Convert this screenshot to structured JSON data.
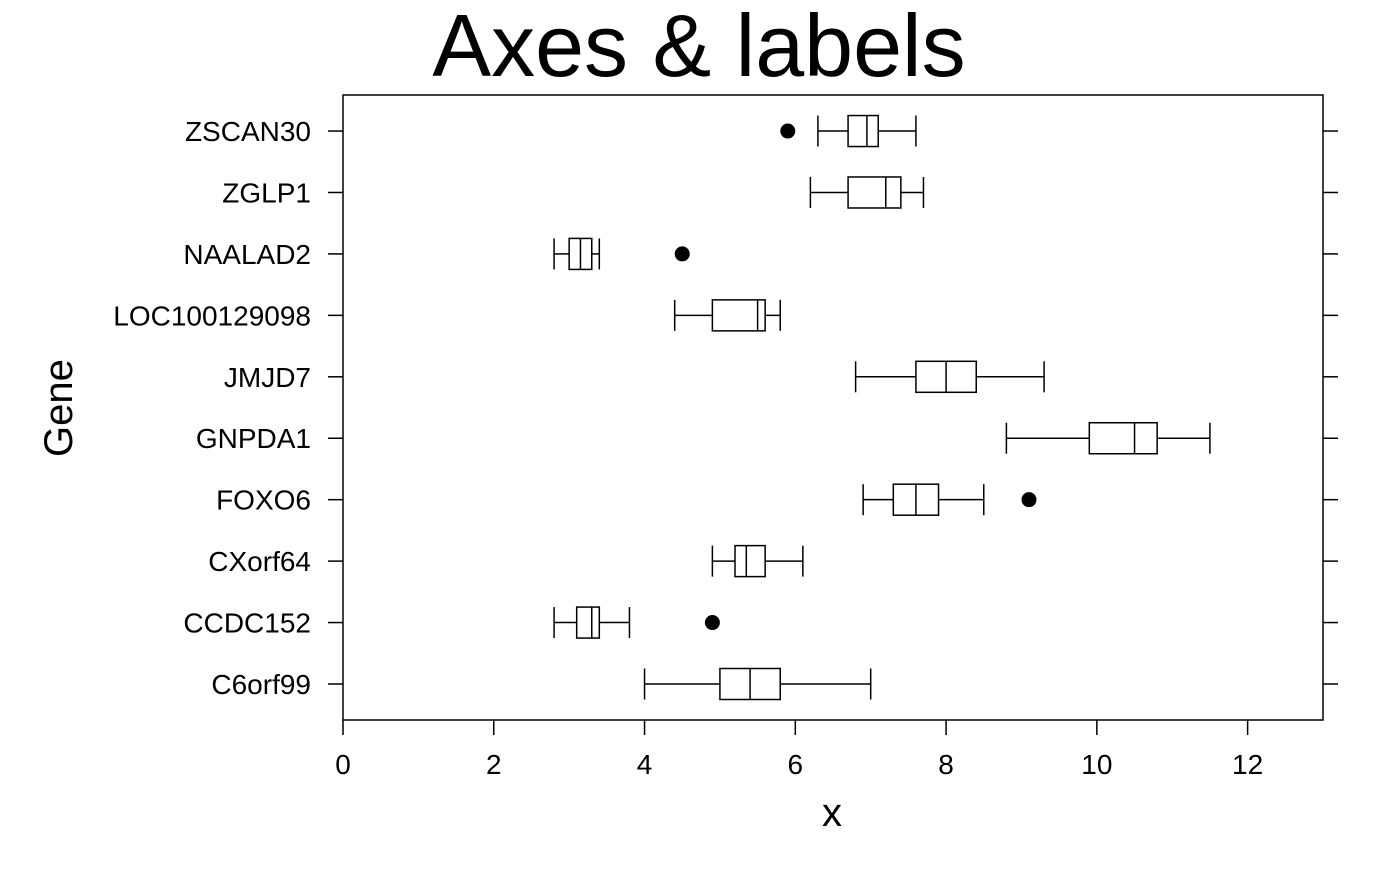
{
  "chart_data": {
    "type": "boxplot",
    "orientation": "horizontal",
    "title": "Axes & labels",
    "xlabel": "x",
    "ylabel": "Gene",
    "xlim": [
      0,
      13
    ],
    "xticks": [
      0,
      2,
      4,
      6,
      8,
      10,
      12
    ],
    "grid": false,
    "legend": "none",
    "colors": {
      "stroke": "#000000",
      "fill": "#ffffff",
      "outlier": "#000000"
    },
    "categories": [
      "C6orf99",
      "CCDC152",
      "CXorf64",
      "FOXO6",
      "GNPDA1",
      "JMJD7",
      "LOC100129098",
      "NAALAD2",
      "ZGLP1",
      "ZSCAN30"
    ],
    "boxes": [
      {
        "gene": "C6orf99",
        "whisker_low": 4.0,
        "q1": 5.0,
        "median": 5.4,
        "q3": 5.8,
        "whisker_high": 7.0,
        "outliers": []
      },
      {
        "gene": "CCDC152",
        "whisker_low": 2.8,
        "q1": 3.1,
        "median": 3.3,
        "q3": 3.4,
        "whisker_high": 3.8,
        "outliers": [
          4.9
        ]
      },
      {
        "gene": "CXorf64",
        "whisker_low": 4.9,
        "q1": 5.2,
        "median": 5.35,
        "q3": 5.6,
        "whisker_high": 6.1,
        "outliers": []
      },
      {
        "gene": "FOXO6",
        "whisker_low": 6.9,
        "q1": 7.3,
        "median": 7.6,
        "q3": 7.9,
        "whisker_high": 8.5,
        "outliers": [
          9.1
        ]
      },
      {
        "gene": "GNPDA1",
        "whisker_low": 8.8,
        "q1": 9.9,
        "median": 10.5,
        "q3": 10.8,
        "whisker_high": 11.5,
        "outliers": []
      },
      {
        "gene": "JMJD7",
        "whisker_low": 6.8,
        "q1": 7.6,
        "median": 8.0,
        "q3": 8.4,
        "whisker_high": 9.3,
        "outliers": []
      },
      {
        "gene": "LOC100129098",
        "whisker_low": 4.4,
        "q1": 4.9,
        "median": 5.5,
        "q3": 5.6,
        "whisker_high": 5.8,
        "outliers": []
      },
      {
        "gene": "NAALAD2",
        "whisker_low": 2.8,
        "q1": 3.0,
        "median": 3.15,
        "q3": 3.3,
        "whisker_high": 3.4,
        "outliers": [
          4.5
        ]
      },
      {
        "gene": "ZGLP1",
        "whisker_low": 6.2,
        "q1": 6.7,
        "median": 7.2,
        "q3": 7.4,
        "whisker_high": 7.7,
        "outliers": []
      },
      {
        "gene": "ZSCAN30",
        "whisker_low": 6.3,
        "q1": 6.7,
        "median": 6.95,
        "q3": 7.1,
        "whisker_high": 7.6,
        "outliers": [
          5.9
        ]
      }
    ]
  }
}
